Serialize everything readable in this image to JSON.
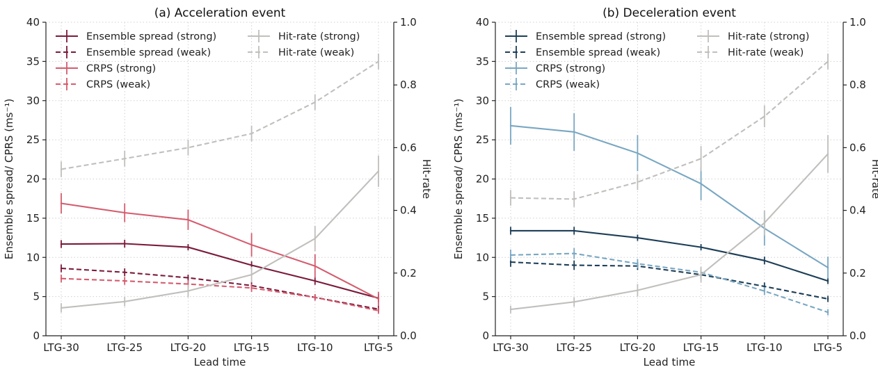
{
  "chart_data": [
    {
      "type": "line",
      "title": "(a) Acceleration event",
      "xlabel": "Lead time",
      "ylabel": "Ensemble spread/ CPRS (ms⁻¹)",
      "ylabel_right": "Hit-rate",
      "categories": [
        "LTG-30",
        "LTG-25",
        "LTG-20",
        "LTG-15",
        "LTG-10",
        "LTG-5"
      ],
      "ylim": [
        0,
        40
      ],
      "yticks": [
        "0",
        "5",
        "10",
        "15",
        "20",
        "25",
        "30",
        "35",
        "40"
      ],
      "ylim_right": [
        0,
        1.0
      ],
      "yticks_right": [
        "0.0",
        "0.2",
        "0.4",
        "0.6",
        "0.8",
        "1.0"
      ],
      "grid": true,
      "legend_position": "top",
      "series": [
        {
          "name": "Ensemble spread (strong)",
          "axis": "left",
          "color": "#7a1a3a",
          "dash": false,
          "values": [
            11.7,
            11.75,
            11.3,
            9.0,
            7.0,
            4.8
          ],
          "err": [
            0.5,
            0.5,
            0.4,
            0.5,
            0.5,
            0.5
          ]
        },
        {
          "name": "Ensemble spread (weak)",
          "axis": "left",
          "color": "#7a1a3a",
          "dash": true,
          "values": [
            8.6,
            8.1,
            7.4,
            6.4,
            4.9,
            3.4
          ],
          "err": [
            0.5,
            0.5,
            0.4,
            0.5,
            0.4,
            0.4
          ]
        },
        {
          "name": "CRPS (strong)",
          "axis": "left",
          "color": "#d45c6e",
          "dash": false,
          "values": [
            16.9,
            15.7,
            14.8,
            11.6,
            8.9,
            4.7
          ],
          "err": [
            1.3,
            1.2,
            1.3,
            1.5,
            1.5,
            0.9
          ]
        },
        {
          "name": "CRPS (weak)",
          "axis": "left",
          "color": "#d45c6e",
          "dash": true,
          "values": [
            7.3,
            7.0,
            6.6,
            6.1,
            4.9,
            3.2
          ],
          "err": [
            0.5,
            0.5,
            0.5,
            0.5,
            0.4,
            0.4
          ]
        },
        {
          "name": "Hit-rate (strong)",
          "axis": "right",
          "color": "#c0bfbc",
          "dash": false,
          "values": [
            0.089,
            0.109,
            0.143,
            0.195,
            0.31,
            0.525
          ],
          "err": [
            0.015,
            0.015,
            0.02,
            0.025,
            0.04,
            0.05
          ]
        },
        {
          "name": "Hit-rate (weak)",
          "axis": "right",
          "color": "#c0bfbc",
          "dash": true,
          "values": [
            0.531,
            0.565,
            0.6,
            0.645,
            0.745,
            0.875
          ],
          "err": [
            0.025,
            0.025,
            0.025,
            0.025,
            0.025,
            0.025
          ]
        }
      ]
    },
    {
      "type": "line",
      "title": "(b) Deceleration event",
      "xlabel": "Lead time",
      "ylabel": "Ensemble spread/ CPRS (ms⁻¹)",
      "ylabel_right": "Hit-rate",
      "categories": [
        "LTG-30",
        "LTG-25",
        "LTG-20",
        "LTG-15",
        "LTG-10",
        "LTG-5"
      ],
      "ylim": [
        0,
        40
      ],
      "yticks": [
        "0",
        "5",
        "10",
        "15",
        "20",
        "25",
        "30",
        "35",
        "40"
      ],
      "ylim_right": [
        0,
        1.0
      ],
      "yticks_right": [
        "0.0",
        "0.2",
        "0.4",
        "0.6",
        "0.8",
        "1.0"
      ],
      "grid": true,
      "legend_position": "top",
      "series": [
        {
          "name": "Ensemble spread (strong)",
          "axis": "left",
          "color": "#1c3e57",
          "dash": false,
          "values": [
            13.4,
            13.4,
            12.5,
            11.3,
            9.6,
            7.0
          ],
          "err": [
            0.5,
            0.5,
            0.4,
            0.4,
            0.5,
            0.4
          ]
        },
        {
          "name": "Ensemble spread (weak)",
          "axis": "left",
          "color": "#1c3e57",
          "dash": true,
          "values": [
            9.4,
            9.0,
            8.9,
            7.8,
            6.3,
            4.7
          ],
          "err": [
            0.6,
            0.6,
            0.5,
            0.5,
            0.5,
            0.4
          ]
        },
        {
          "name": "CRPS (strong)",
          "axis": "left",
          "color": "#79a7c2",
          "dash": false,
          "values": [
            26.8,
            26.0,
            23.3,
            19.4,
            13.7,
            8.7
          ],
          "err": [
            2.4,
            2.4,
            2.3,
            2.1,
            2.2,
            1.4
          ]
        },
        {
          "name": "CRPS (weak)",
          "axis": "left",
          "color": "#79a7c2",
          "dash": true,
          "values": [
            10.3,
            10.5,
            9.2,
            8.1,
            5.7,
            3.0
          ],
          "err": [
            0.7,
            0.7,
            0.6,
            0.6,
            0.5,
            0.4
          ]
        },
        {
          "name": "Hit-rate (strong)",
          "axis": "right",
          "color": "#c0bfbc",
          "dash": false,
          "values": [
            0.084,
            0.108,
            0.145,
            0.195,
            0.36,
            0.58
          ],
          "err": [
            0.012,
            0.015,
            0.02,
            0.025,
            0.04,
            0.06
          ]
        },
        {
          "name": "Hit-rate (weak)",
          "axis": "right",
          "color": "#c0bfbc",
          "dash": true,
          "values": [
            0.44,
            0.436,
            0.49,
            0.565,
            0.7,
            0.875
          ],
          "err": [
            0.025,
            0.025,
            0.025,
            0.04,
            0.035,
            0.025
          ]
        }
      ]
    }
  ]
}
